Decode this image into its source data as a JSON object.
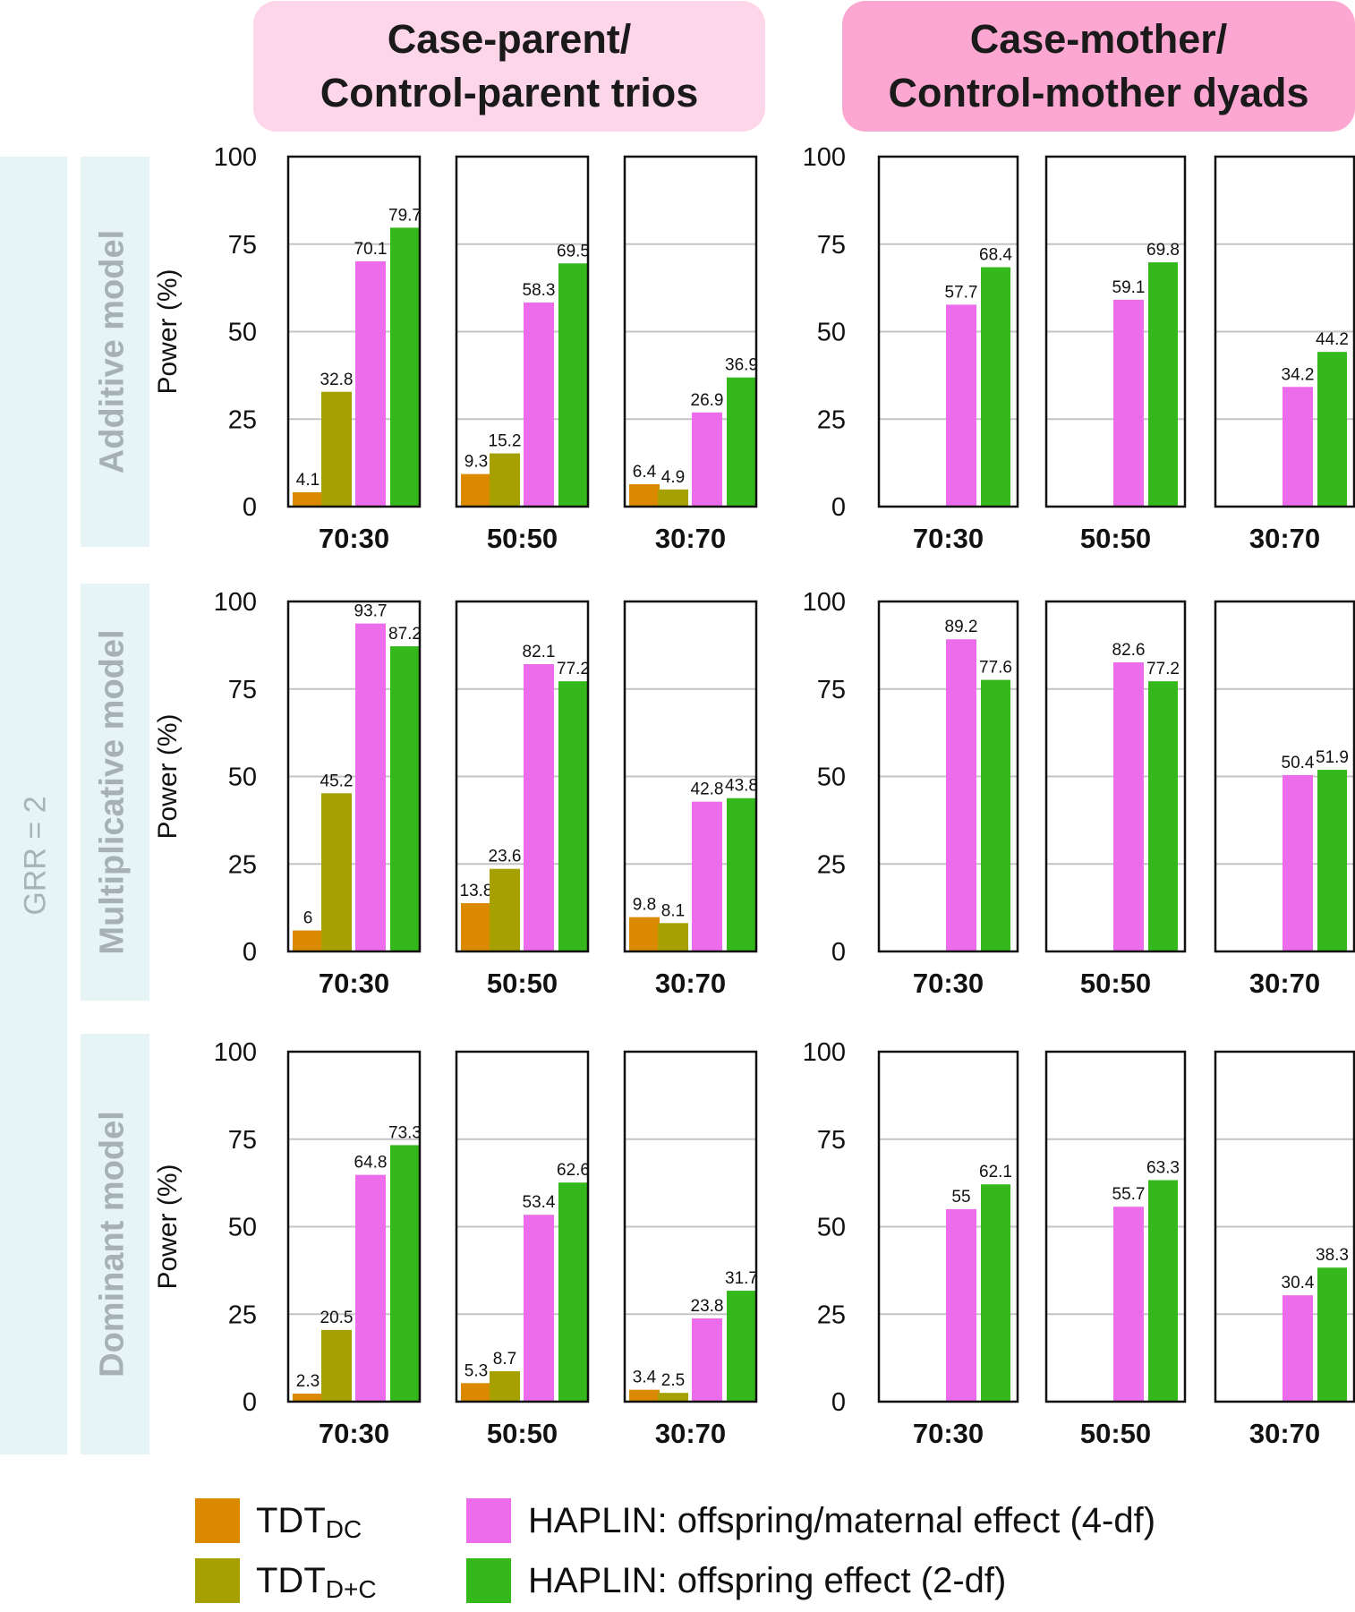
{
  "headers": {
    "left": "Case-parent/\nControl-parent trios",
    "right": "Case-mother/\nControl-mother dyads"
  },
  "grr_label": "GRR = 2",
  "colors": {
    "tdt_dc": "#db8a00",
    "tdt_d_c": "#a6a100",
    "haplin_4df": "#ec6cec",
    "haplin_2df": "#35b81b"
  },
  "legend": {
    "tdt_dc_main": "TDT",
    "tdt_dc_sub": "DC",
    "tdt_d_c_main": "TDT",
    "tdt_d_c_sub": "D+C",
    "haplin_4df": "HAPLIN: offspring/maternal effect (4-df)",
    "haplin_2df": "HAPLIN: offspring effect (2-df)"
  },
  "chart_data": {
    "type": "bar",
    "ylabel": "Power (%)",
    "ylim": [
      0,
      100
    ],
    "yticks": [
      0,
      25,
      50,
      75,
      100
    ],
    "series_names": [
      "TDT_DC",
      "TDT_D+C",
      "HAPLIN: offspring/maternal effect (4-df)",
      "HAPLIN: offspring effect (2-df)"
    ],
    "rows": [
      {
        "model": "Additive model",
        "groups": [
          {
            "design": "trios",
            "panels": [
              {
                "category": "70:30",
                "values": [
                  4.1,
                  32.8,
                  70.1,
                  79.7
                ]
              },
              {
                "category": "50:50",
                "values": [
                  9.3,
                  15.2,
                  58.3,
                  69.5
                ]
              },
              {
                "category": "30:70",
                "values": [
                  6.4,
                  4.9,
                  26.9,
                  36.9
                ]
              }
            ]
          },
          {
            "design": "dyads",
            "panels": [
              {
                "category": "70:30",
                "values": [
                  null,
                  null,
                  57.7,
                  68.4
                ]
              },
              {
                "category": "50:50",
                "values": [
                  null,
                  null,
                  59.1,
                  69.8
                ]
              },
              {
                "category": "30:70",
                "values": [
                  null,
                  null,
                  34.2,
                  44.2
                ]
              }
            ]
          }
        ]
      },
      {
        "model": "Multiplicative model",
        "groups": [
          {
            "design": "trios",
            "panels": [
              {
                "category": "70:30",
                "values": [
                  6,
                  45.2,
                  93.7,
                  87.2
                ]
              },
              {
                "category": "50:50",
                "values": [
                  13.8,
                  23.6,
                  82.1,
                  77.2
                ]
              },
              {
                "category": "30:70",
                "values": [
                  9.8,
                  8.1,
                  42.8,
                  43.8
                ]
              }
            ]
          },
          {
            "design": "dyads",
            "panels": [
              {
                "category": "70:30",
                "values": [
                  null,
                  null,
                  89.2,
                  77.6
                ]
              },
              {
                "category": "50:50",
                "values": [
                  null,
                  null,
                  82.6,
                  77.2
                ]
              },
              {
                "category": "30:70",
                "values": [
                  null,
                  null,
                  50.4,
                  51.9
                ]
              }
            ]
          }
        ]
      },
      {
        "model": "Dominant model",
        "groups": [
          {
            "design": "trios",
            "panels": [
              {
                "category": "70:30",
                "values": [
                  2.3,
                  20.5,
                  64.8,
                  73.3
                ]
              },
              {
                "category": "50:50",
                "values": [
                  5.3,
                  8.7,
                  53.4,
                  62.6
                ]
              },
              {
                "category": "30:70",
                "values": [
                  3.4,
                  2.5,
                  23.8,
                  31.7
                ]
              }
            ]
          },
          {
            "design": "dyads",
            "panels": [
              {
                "category": "70:30",
                "values": [
                  null,
                  null,
                  55,
                  62.1
                ]
              },
              {
                "category": "50:50",
                "values": [
                  null,
                  null,
                  55.7,
                  63.3
                ]
              },
              {
                "category": "30:70",
                "values": [
                  null,
                  null,
                  30.4,
                  38.3
                ]
              }
            ]
          }
        ]
      }
    ]
  }
}
